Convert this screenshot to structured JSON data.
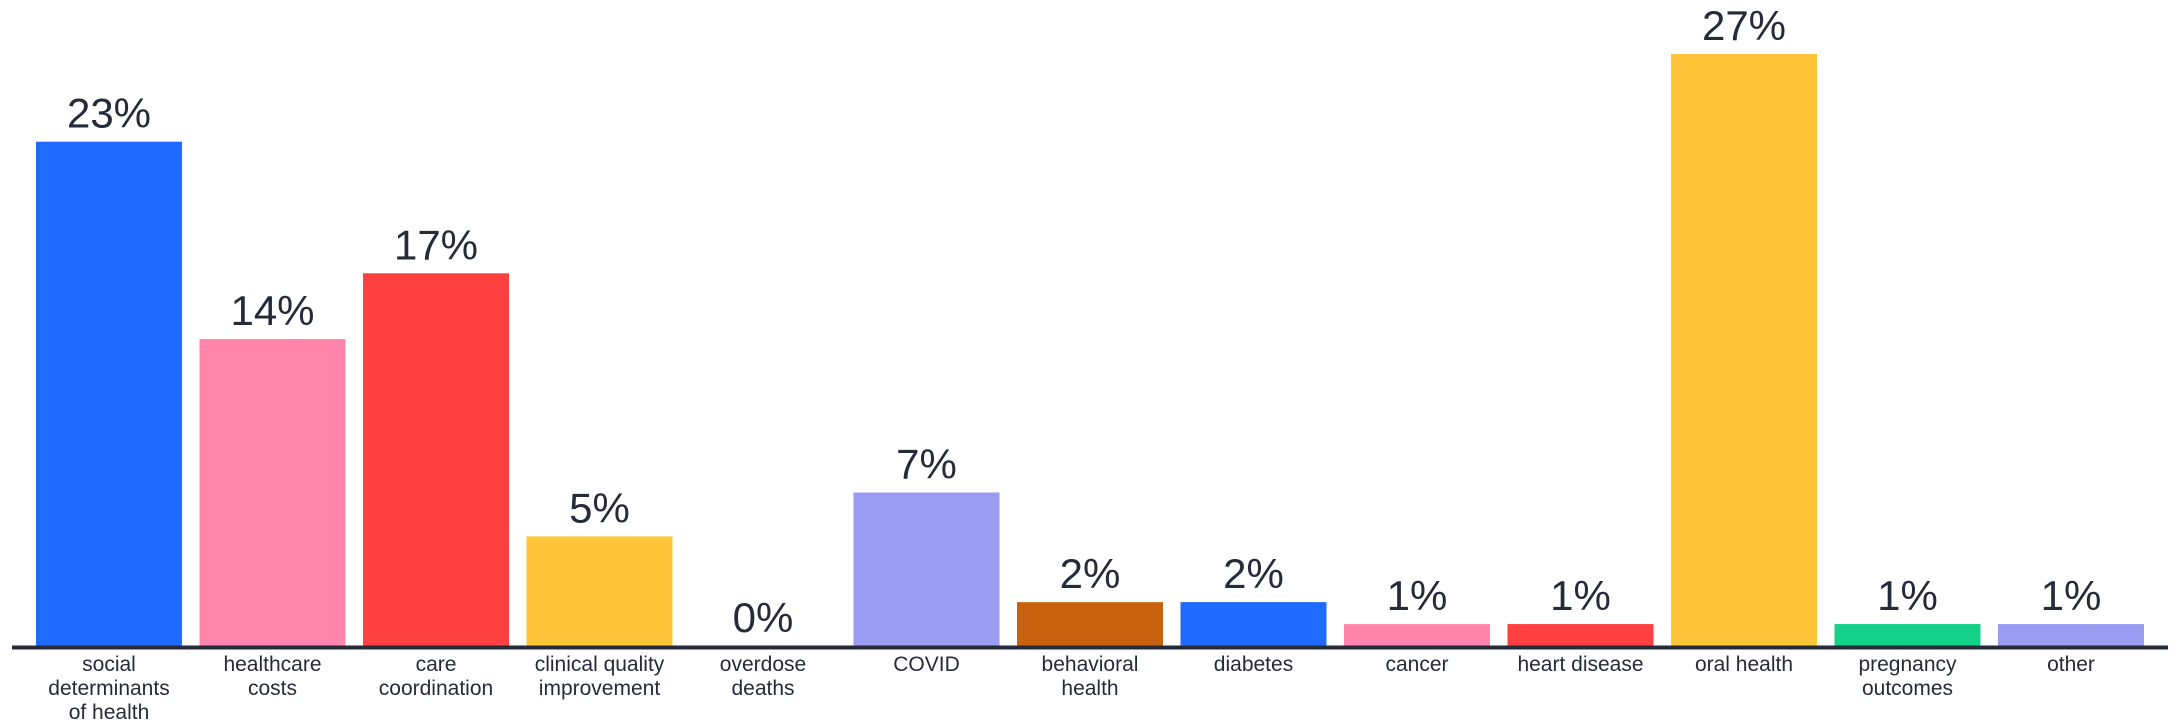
{
  "chart_data": {
    "type": "bar",
    "title": "",
    "xlabel": "",
    "ylabel": "",
    "ylim": [
      0,
      27
    ],
    "grid": false,
    "legend": "none",
    "value_suffix": "%",
    "categories": [
      [
        "social",
        "determinants",
        "of health"
      ],
      [
        "healthcare",
        "costs"
      ],
      [
        "care",
        "coordination"
      ],
      [
        "clinical quality",
        "improvement"
      ],
      [
        "overdose",
        "deaths"
      ],
      [
        "COVID"
      ],
      [
        "behavioral",
        "health"
      ],
      [
        "diabetes"
      ],
      [
        "cancer"
      ],
      [
        "heart disease"
      ],
      [
        "oral health"
      ],
      [
        "pregnancy",
        "outcomes"
      ],
      [
        "other"
      ]
    ],
    "values": [
      23,
      14,
      17,
      5,
      0,
      7,
      2,
      2,
      1,
      1,
      27,
      1,
      1
    ],
    "labels": [
      "23%",
      "14%",
      "17%",
      "5%",
      "0%",
      "7%",
      "2%",
      "2%",
      "1%",
      "1%",
      "27%",
      "1%",
      "1%"
    ],
    "colors": [
      "#1f6bff",
      "#ff85ad",
      "#ff4040",
      "#ffc53a",
      "#ffffff",
      "#9a9cf2",
      "#c9620f",
      "#1f6bff",
      "#ff85ad",
      "#ff4040",
      "#ffc53a",
      "#14d188",
      "#9a9cf2"
    ],
    "axis_color": "#262b3a"
  }
}
